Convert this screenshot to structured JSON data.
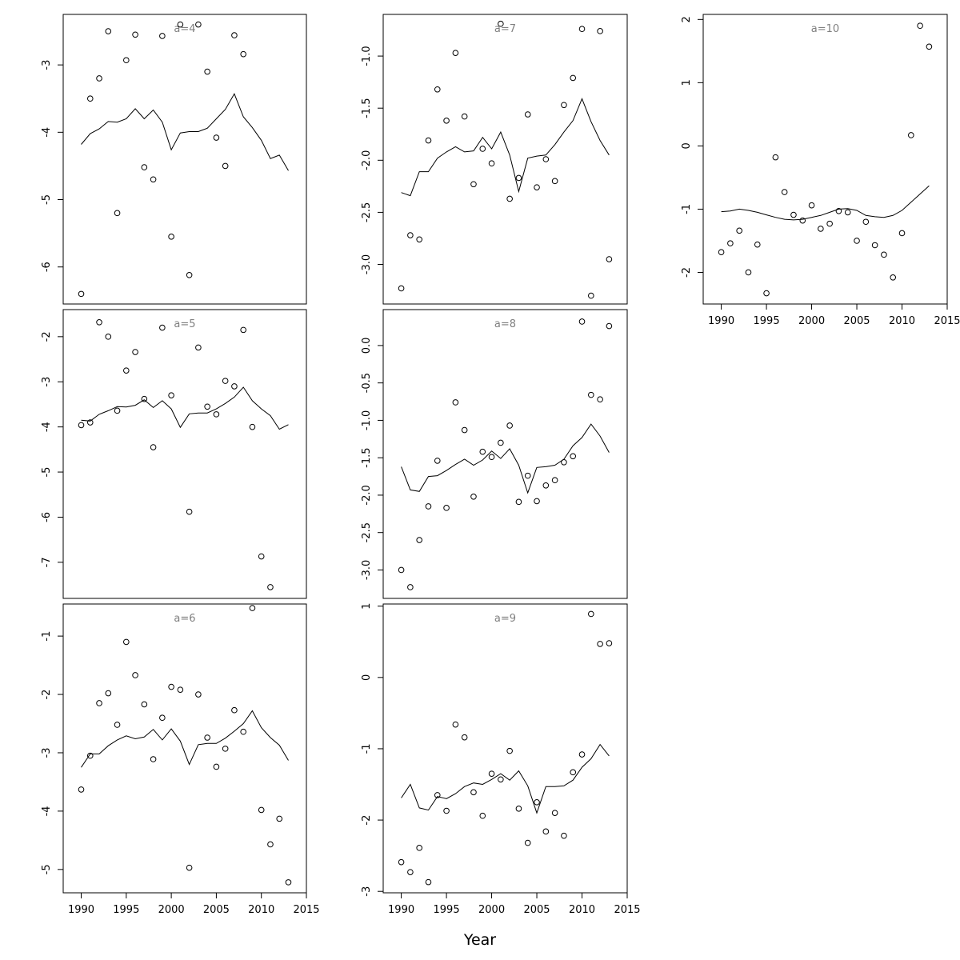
{
  "page": {
    "xlabel": "Year"
  },
  "colors": {
    "frame": "#000000",
    "title": "#808080",
    "marks": "#000000"
  },
  "chart_data": [
    {
      "type": "scatter+line",
      "title": "a=4",
      "xlim": [
        1988,
        2015
      ],
      "ylim": [
        -6.55,
        -2.25
      ],
      "xticks": [],
      "yticks": [
        -6,
        -5,
        -4,
        -3
      ],
      "points": {
        "x": [
          1990,
          1991,
          1992,
          1993,
          1994,
          1995,
          1996,
          1997,
          1998,
          1999,
          2000,
          2001,
          2002,
          2003,
          2004,
          2005,
          2006,
          2007,
          2008
        ],
        "y": [
          -6.4,
          -3.5,
          -3.2,
          -2.5,
          -5.2,
          -2.93,
          -2.55,
          -4.52,
          -4.7,
          -2.57,
          -5.55,
          -2.4,
          -6.12,
          -2.4,
          -3.1,
          -4.08,
          -4.5,
          -2.56,
          -2.84
        ]
      },
      "line": {
        "x": [
          1990,
          1991,
          1992,
          1993,
          1994,
          1995,
          1996,
          1997,
          1998,
          1999,
          2000,
          2001,
          2002,
          2003,
          2004,
          2005,
          2006,
          2007,
          2008,
          2009,
          2010,
          2011,
          2012,
          2013
        ],
        "y": [
          -4.18,
          -4.02,
          -3.95,
          -3.84,
          -3.85,
          -3.8,
          -3.65,
          -3.8,
          -3.67,
          -3.85,
          -4.26,
          -4.01,
          -3.99,
          -3.99,
          -3.94,
          -3.8,
          -3.66,
          -3.43,
          -3.77,
          -3.93,
          -4.12,
          -4.39,
          -4.34,
          -4.57
        ]
      }
    },
    {
      "type": "scatter+line",
      "title": "a=7",
      "xlim": [
        1988,
        2015
      ],
      "ylim": [
        -3.38,
        -0.6
      ],
      "xticks": [],
      "yticks": [
        -3.0,
        -2.5,
        -2.0,
        -1.5,
        -1.0
      ],
      "ytick_labels": [
        "-3.0",
        "-2.5",
        "-2.0",
        "-1.5",
        "-1.0"
      ],
      "points": {
        "x": [
          1990,
          1991,
          1992,
          1993,
          1994,
          1995,
          1996,
          1997,
          1998,
          1999,
          2000,
          2001,
          2002,
          2003,
          2004,
          2005,
          2006,
          2007,
          2008,
          2009,
          2010,
          2011,
          2012,
          2013
        ],
        "y": [
          -3.23,
          -2.72,
          -2.76,
          -1.81,
          -1.32,
          -1.62,
          -0.97,
          -1.58,
          -2.23,
          -1.89,
          -2.03,
          -0.69,
          -2.37,
          -2.17,
          -1.56,
          -2.26,
          -1.99,
          -2.2,
          -1.47,
          -1.21,
          -0.74,
          -3.3,
          -0.76,
          -2.95
        ]
      },
      "line": {
        "x": [
          1990,
          1991,
          1992,
          1993,
          1994,
          1995,
          1996,
          1997,
          1998,
          1999,
          2000,
          2001,
          2002,
          2003,
          2004,
          2005,
          2006,
          2007,
          2008,
          2009,
          2010,
          2011,
          2012,
          2013
        ],
        "y": [
          -2.31,
          -2.34,
          -2.11,
          -2.11,
          -1.98,
          -1.92,
          -1.87,
          -1.92,
          -1.91,
          -1.78,
          -1.89,
          -1.73,
          -1.95,
          -2.3,
          -1.98,
          -1.96,
          -1.95,
          -1.85,
          -1.73,
          -1.62,
          -1.41,
          -1.63,
          -1.81,
          -1.95
        ]
      }
    },
    {
      "type": "scatter+line",
      "title": "a=10",
      "xlim": [
        1988,
        2015
      ],
      "ylim": [
        -2.5,
        2.08
      ],
      "xticks": [
        1990,
        1995,
        2000,
        2005,
        2010,
        2015
      ],
      "yticks": [
        -2,
        -1,
        0,
        1,
        2
      ],
      "points": {
        "x": [
          1990,
          1991,
          1992,
          1993,
          1994,
          1995,
          1996,
          1997,
          1998,
          1999,
          2000,
          2001,
          2002,
          2003,
          2004,
          2005,
          2006,
          2007,
          2008,
          2009,
          2010,
          2011,
          2012,
          2013
        ],
        "y": [
          -1.68,
          -1.54,
          -1.34,
          -2.0,
          -1.56,
          -2.33,
          -0.18,
          -0.73,
          -1.09,
          -1.18,
          -0.94,
          -1.31,
          -1.23,
          -1.03,
          -1.05,
          -1.5,
          -1.2,
          -1.57,
          -1.72,
          -2.08,
          -1.38,
          0.17,
          1.9,
          1.57
        ]
      },
      "line": {
        "x": [
          1990,
          1991,
          1992,
          1993,
          1994,
          1995,
          1996,
          1997,
          1998,
          1999,
          2000,
          2001,
          2002,
          2003,
          2004,
          2005,
          2006,
          2007,
          2008,
          2009,
          2010,
          2011,
          2012,
          2013
        ],
        "y": [
          -1.04,
          -1.03,
          -1.0,
          -1.02,
          -1.05,
          -1.09,
          -1.13,
          -1.16,
          -1.17,
          -1.16,
          -1.13,
          -1.1,
          -1.05,
          -1.0,
          -0.99,
          -1.02,
          -1.1,
          -1.12,
          -1.13,
          -1.1,
          -1.02,
          -0.89,
          -0.76,
          -0.63
        ]
      }
    },
    {
      "type": "scatter+line",
      "title": "a=5",
      "xlim": [
        1988,
        2015
      ],
      "ylim": [
        -7.8,
        -1.4
      ],
      "xticks": [],
      "yticks": [
        -7,
        -6,
        -5,
        -4,
        -3,
        -2
      ],
      "points": {
        "x": [
          1990,
          1991,
          1992,
          1993,
          1994,
          1995,
          1996,
          1997,
          1998,
          1999,
          2000,
          2002,
          2003,
          2004,
          2005,
          2006,
          2007,
          2008,
          2009,
          2010,
          2011
        ],
        "y": [
          -3.96,
          -3.9,
          -1.68,
          -2.0,
          -3.64,
          -2.75,
          -2.34,
          -3.38,
          -4.45,
          -1.8,
          -3.3,
          -5.88,
          -2.24,
          -3.55,
          -3.72,
          -2.98,
          -3.1,
          -1.85,
          -4.0,
          -6.87,
          -7.55
        ]
      },
      "line": {
        "x": [
          1990,
          1991,
          1992,
          1993,
          1994,
          1995,
          1996,
          1997,
          1998,
          1999,
          2000,
          2001,
          2002,
          2003,
          2004,
          2005,
          2006,
          2007,
          2008,
          2009,
          2010,
          2011,
          2012,
          2013
        ],
        "y": [
          -3.85,
          -3.87,
          -3.72,
          -3.64,
          -3.55,
          -3.56,
          -3.52,
          -3.4,
          -3.57,
          -3.42,
          -3.6,
          -4.01,
          -3.71,
          -3.69,
          -3.69,
          -3.6,
          -3.48,
          -3.34,
          -3.12,
          -3.42,
          -3.6,
          -3.75,
          -4.05,
          -3.95
        ]
      }
    },
    {
      "type": "scatter+line",
      "title": "a=8",
      "xlim": [
        1988,
        2015
      ],
      "ylim": [
        -3.38,
        0.48
      ],
      "xticks": [],
      "yticks": [
        -3.0,
        -2.5,
        -2.0,
        -1.5,
        -1.0,
        -0.5,
        0.0
      ],
      "ytick_labels": [
        "-3.0",
        "-2.5",
        "-2.0",
        "-1.5",
        "-1.0",
        "-0.5",
        "0.0"
      ],
      "points": {
        "x": [
          1990,
          1991,
          1992,
          1993,
          1994,
          1995,
          1996,
          1997,
          1998,
          1999,
          2000,
          2001,
          2002,
          2003,
          2004,
          2005,
          2006,
          2007,
          2008,
          2009,
          2010,
          2011,
          2012,
          2013
        ],
        "y": [
          -3.0,
          -3.23,
          -2.6,
          -2.15,
          -1.54,
          -2.17,
          -0.76,
          -1.13,
          -2.02,
          -1.42,
          -1.49,
          -1.3,
          -1.07,
          -2.09,
          -1.74,
          -2.08,
          -1.87,
          -1.8,
          -1.56,
          -1.48,
          0.32,
          -0.66,
          -0.72,
          0.26
        ]
      },
      "line": {
        "x": [
          1990,
          1991,
          1992,
          1993,
          1994,
          1995,
          1996,
          1997,
          1998,
          1999,
          2000,
          2001,
          2002,
          2003,
          2004,
          2005,
          2006,
          2007,
          2008,
          2009,
          2010,
          2011,
          2012,
          2013
        ],
        "y": [
          -1.62,
          -1.93,
          -1.95,
          -1.75,
          -1.74,
          -1.67,
          -1.59,
          -1.52,
          -1.6,
          -1.53,
          -1.41,
          -1.51,
          -1.38,
          -1.6,
          -1.97,
          -1.63,
          -1.62,
          -1.6,
          -1.52,
          -1.34,
          -1.23,
          -1.05,
          -1.21,
          -1.43
        ]
      }
    },
    {
      "type": "scatter+line",
      "title": "a=6",
      "xlim": [
        1988,
        2015
      ],
      "ylim": [
        -5.4,
        -0.45
      ],
      "xticks": [
        1990,
        1995,
        2000,
        2005,
        2010,
        2015
      ],
      "yticks": [
        -5,
        -4,
        -3,
        -2,
        -1
      ],
      "points": {
        "x": [
          1990,
          1991,
          1992,
          1993,
          1994,
          1995,
          1996,
          1997,
          1998,
          1999,
          2000,
          2001,
          2002,
          2003,
          2004,
          2005,
          2006,
          2007,
          2008,
          2009,
          2010,
          2011,
          2012,
          2013
        ],
        "y": [
          -3.63,
          -3.05,
          -2.15,
          -1.98,
          -2.52,
          -1.1,
          -1.67,
          -2.17,
          -3.11,
          -2.4,
          -1.87,
          -1.92,
          -4.97,
          -2.0,
          -2.74,
          -3.24,
          -2.93,
          -2.27,
          -2.64,
          -0.52,
          -3.98,
          -4.57,
          -4.13,
          -5.22
        ]
      },
      "line": {
        "x": [
          1990,
          1991,
          1992,
          1993,
          1994,
          1995,
          1996,
          1997,
          1998,
          1999,
          2000,
          2001,
          2002,
          2003,
          2004,
          2005,
          2006,
          2007,
          2008,
          2009,
          2010,
          2011,
          2012,
          2013
        ],
        "y": [
          -3.25,
          -3.02,
          -3.02,
          -2.88,
          -2.78,
          -2.71,
          -2.76,
          -2.73,
          -2.6,
          -2.78,
          -2.59,
          -2.8,
          -3.2,
          -2.86,
          -2.84,
          -2.84,
          -2.75,
          -2.63,
          -2.5,
          -2.28,
          -2.57,
          -2.74,
          -2.87,
          -3.13
        ]
      }
    },
    {
      "type": "scatter+line",
      "title": "a=9",
      "xlim": [
        1988,
        2015
      ],
      "ylim": [
        -3.02,
        1.03
      ],
      "xticks": [
        1990,
        1995,
        2000,
        2005,
        2010,
        2015
      ],
      "yticks": [
        -3,
        -2,
        -1,
        0,
        1
      ],
      "points": {
        "x": [
          1990,
          1991,
          1992,
          1993,
          1994,
          1995,
          1996,
          1997,
          1998,
          1999,
          2000,
          2001,
          2002,
          2003,
          2004,
          2005,
          2006,
          2007,
          2008,
          2009,
          2010,
          2011,
          2012,
          2013
        ],
        "y": [
          -2.59,
          -2.73,
          -2.39,
          -2.87,
          -1.65,
          -1.87,
          -0.66,
          -0.84,
          -1.61,
          -1.94,
          -1.35,
          -1.43,
          -1.03,
          -1.84,
          -2.32,
          -1.75,
          -2.16,
          -1.9,
          -2.22,
          -1.33,
          -1.08,
          0.89,
          0.47,
          0.48
        ]
      },
      "line": {
        "x": [
          1990,
          1991,
          1992,
          1993,
          1994,
          1995,
          1996,
          1997,
          1998,
          1999,
          2000,
          2001,
          2002,
          2003,
          2004,
          2005,
          2006,
          2007,
          2008,
          2009,
          2010,
          2011,
          2012,
          2013
        ],
        "y": [
          -1.69,
          -1.5,
          -1.83,
          -1.86,
          -1.67,
          -1.7,
          -1.63,
          -1.53,
          -1.48,
          -1.5,
          -1.43,
          -1.35,
          -1.44,
          -1.31,
          -1.52,
          -1.9,
          -1.53,
          -1.53,
          -1.52,
          -1.44,
          -1.26,
          -1.14,
          -0.94,
          -1.1
        ]
      }
    }
  ]
}
